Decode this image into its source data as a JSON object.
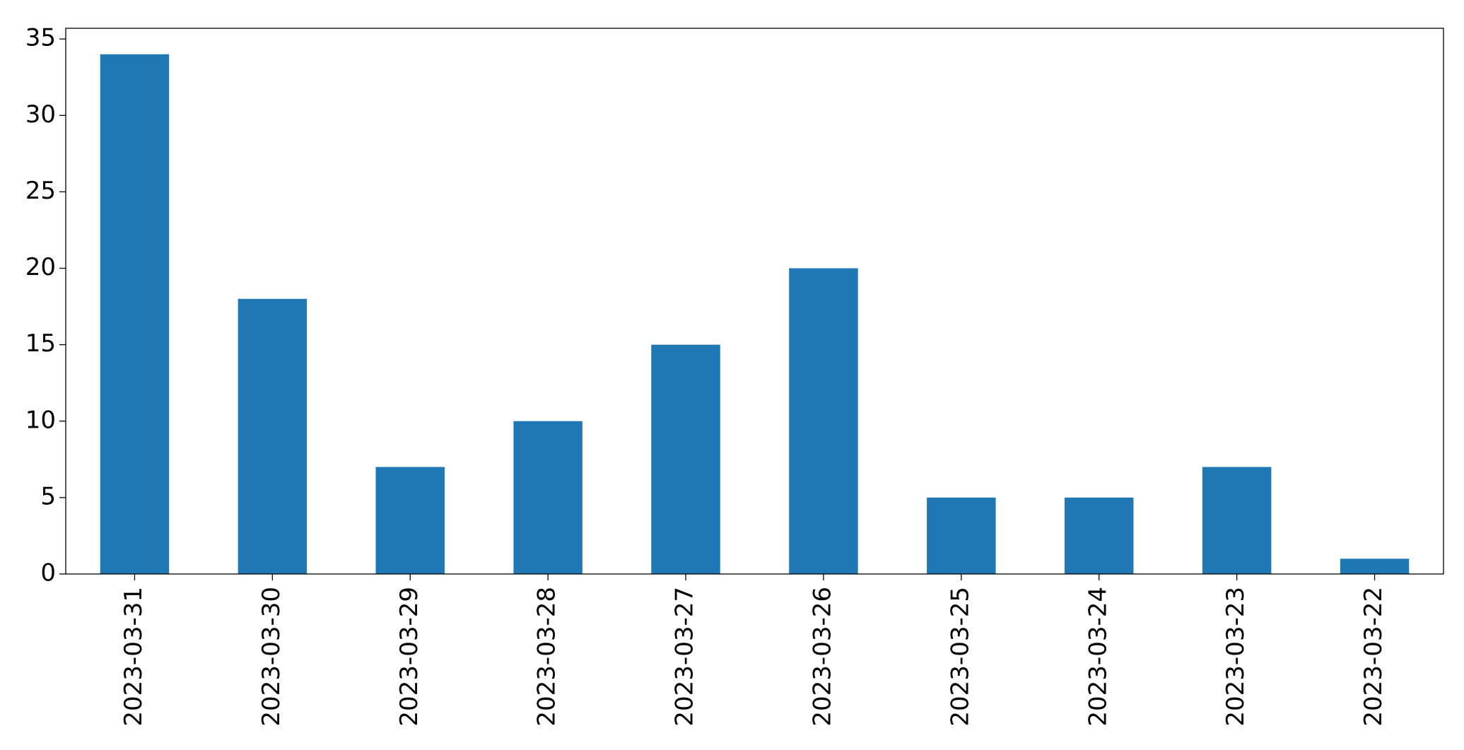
{
  "chart_data": {
    "type": "bar",
    "categories": [
      "2023-03-31",
      "2023-03-30",
      "2023-03-29",
      "2023-03-28",
      "2023-03-27",
      "2023-03-26",
      "2023-03-25",
      "2023-03-24",
      "2023-03-23",
      "2023-03-22"
    ],
    "values": [
      34,
      18,
      7,
      10,
      15,
      20,
      5,
      5,
      7,
      1
    ],
    "color": "#1f77b4",
    "ylim": [
      0,
      35.7
    ],
    "yticks": [
      0,
      5,
      10,
      15,
      20,
      25,
      30,
      35
    ],
    "grid": false
  }
}
